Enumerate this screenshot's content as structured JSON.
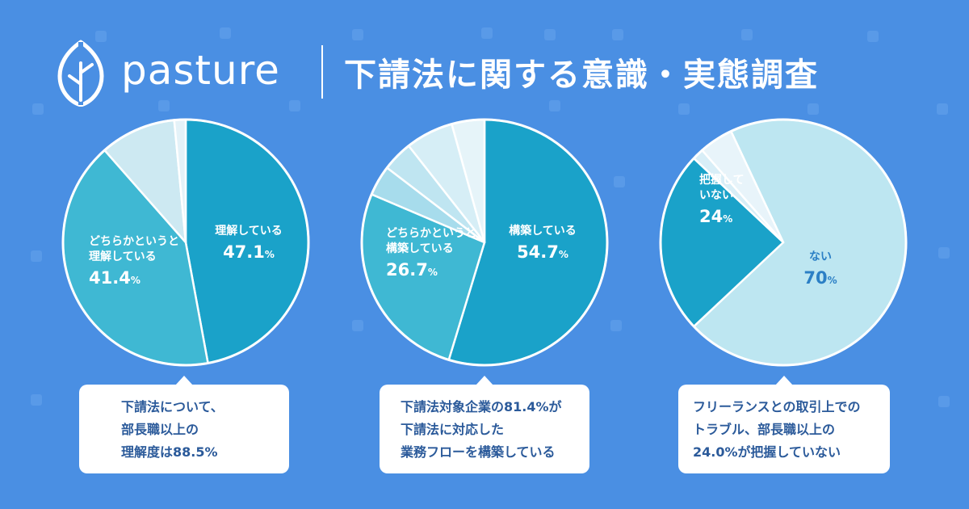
{
  "brand": {
    "name": "pasture"
  },
  "title": "下請法に関する意識・実態調査",
  "colors": {
    "background": "#4a8fe3",
    "callout_text": "#2b5a9a"
  },
  "chart_data": [
    {
      "type": "pie",
      "slices": [
        {
          "label": "理解している",
          "value": 47.1,
          "value_text": "47.1%",
          "color": "#1aa2c9"
        },
        {
          "label": "どちらかというと理解している",
          "label_lines": [
            "どちらかというと",
            "理解している"
          ],
          "value": 41.4,
          "value_text": "41.4%",
          "color": "#3fb8d3"
        },
        {
          "label": "",
          "value": 10.0,
          "color": "#cde9f2"
        },
        {
          "label": "",
          "value": 1.5,
          "color": "#e4f2f8"
        }
      ],
      "callout": [
        "下請法について、",
        "部長職以上の",
        "理解度は88.5%"
      ]
    },
    {
      "type": "pie",
      "slices": [
        {
          "label": "構築している",
          "value": 54.7,
          "value_text": "54.7%",
          "color": "#1aa2c9"
        },
        {
          "label": "どちらかというと構築している",
          "label_lines": [
            "どちらかというと",
            "構築している"
          ],
          "value": 26.7,
          "value_text": "26.7%",
          "color": "#3fb8d3"
        },
        {
          "label": "",
          "value": 4.0,
          "color": "#a7dcec"
        },
        {
          "label": "",
          "value": 4.0,
          "color": "#bfe5f1"
        },
        {
          "label": "",
          "value": 6.3,
          "color": "#d6eef6"
        },
        {
          "label": "",
          "value": 4.3,
          "color": "#e6f4f9"
        }
      ],
      "callout": [
        "下請法対象企業の81.4%が",
        "下請法に対応した",
        "業務フローを構築している"
      ]
    },
    {
      "type": "pie",
      "slices": [
        {
          "label": "ない",
          "value": 70,
          "value_text": "70%",
          "color": "#bde6f1"
        },
        {
          "label": "把握していない",
          "label_lines": [
            "把握して",
            "いない"
          ],
          "value": 24,
          "value_text": "24%",
          "color": "#1aa2c9"
        },
        {
          "label": "",
          "value": 1.5,
          "color": "#d8eef7"
        },
        {
          "label": "",
          "value": 4.5,
          "color": "#e8f4fa"
        }
      ],
      "callout": [
        "フリーランスとの取引上での",
        "トラブル、部長職以上の",
        "24.0%が把握していない"
      ]
    }
  ]
}
